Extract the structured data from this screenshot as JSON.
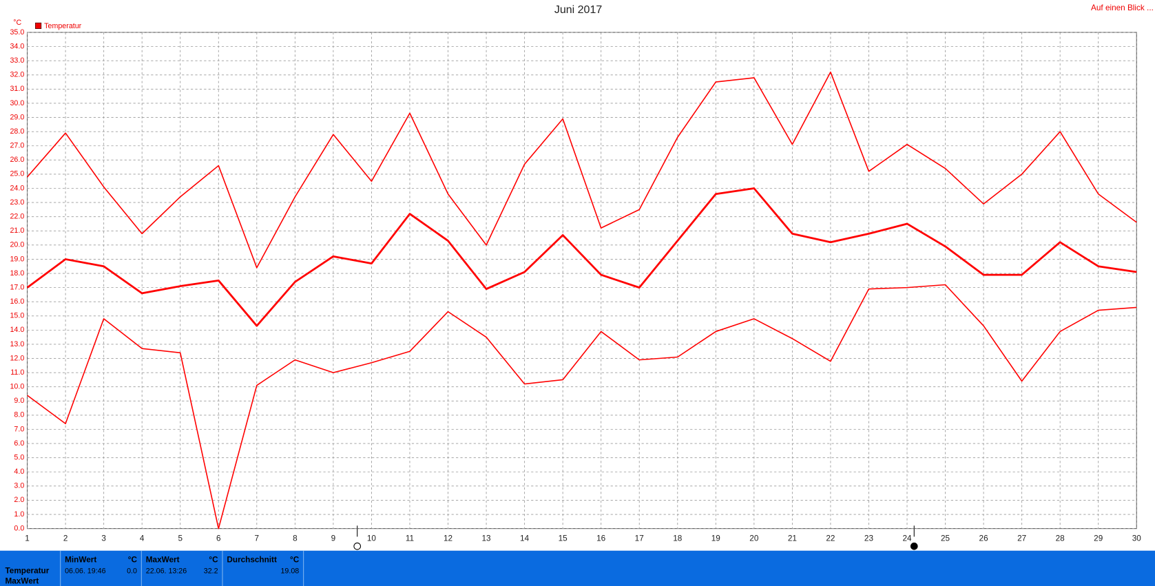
{
  "chart_data": {
    "type": "line",
    "title": "Juni 2017",
    "y_unit": "°C",
    "legend_label": "Temperatur",
    "x": [
      1,
      2,
      3,
      4,
      5,
      6,
      7,
      8,
      9,
      10,
      11,
      12,
      13,
      14,
      15,
      16,
      17,
      18,
      19,
      20,
      21,
      22,
      23,
      24,
      25,
      26,
      27,
      28,
      29,
      30
    ],
    "xticks": [
      1,
      2,
      3,
      4,
      5,
      6,
      7,
      8,
      9,
      10,
      11,
      12,
      13,
      14,
      15,
      16,
      17,
      18,
      19,
      20,
      21,
      22,
      23,
      24,
      25,
      26,
      27,
      28,
      29,
      30
    ],
    "xlim": [
      1,
      30
    ],
    "ylim": [
      0,
      35
    ],
    "grid": true,
    "yticks": [
      {
        "value": 0,
        "label": "0.0"
      },
      {
        "value": 1,
        "label": "1.0"
      },
      {
        "value": 2,
        "label": "2.0"
      },
      {
        "value": 3,
        "label": "3.0"
      },
      {
        "value": 4,
        "label": "4.0"
      },
      {
        "value": 5,
        "label": "5.0"
      },
      {
        "value": 6,
        "label": "6.0"
      },
      {
        "value": 7,
        "label": "7.0"
      },
      {
        "value": 8,
        "label": "8.0"
      },
      {
        "value": 9,
        "label": "9.0"
      },
      {
        "value": 10,
        "label": "10.0"
      },
      {
        "value": 11,
        "label": "11.0"
      },
      {
        "value": 12,
        "label": "12.0"
      },
      {
        "value": 13,
        "label": "13.0"
      },
      {
        "value": 14,
        "label": "14.0"
      },
      {
        "value": 15,
        "label": "15.0"
      },
      {
        "value": 16,
        "label": "16.0"
      },
      {
        "value": 17,
        "label": "17.0"
      },
      {
        "value": 18,
        "label": "18.0"
      },
      {
        "value": 19,
        "label": "19.0"
      },
      {
        "value": 20,
        "label": "20.0"
      },
      {
        "value": 21,
        "label": "21.0"
      },
      {
        "value": 22,
        "label": "22.0"
      },
      {
        "value": 23,
        "label": "23.0"
      },
      {
        "value": 24,
        "label": "24.0"
      },
      {
        "value": 25,
        "label": "25.0"
      },
      {
        "value": 26,
        "label": "26.0"
      },
      {
        "value": 27,
        "label": "27.0"
      },
      {
        "value": 28,
        "label": "28.0"
      },
      {
        "value": 29,
        "label": "29.0"
      },
      {
        "value": 30,
        "label": "30.0"
      },
      {
        "value": 31,
        "label": "31.0"
      },
      {
        "value": 32,
        "label": "32.0"
      },
      {
        "value": 33,
        "label": "33.0"
      },
      {
        "value": 34,
        "label": "34.0"
      },
      {
        "value": 35,
        "label": "35.0"
      }
    ],
    "series": [
      {
        "color": "#ff0000",
        "values": [
          24.8,
          27.9,
          24.1,
          20.8,
          23.4,
          25.6,
          18.4,
          23.4,
          27.8,
          24.5,
          29.3,
          23.6,
          20.0,
          25.7,
          28.9,
          21.2,
          22.5,
          27.6,
          31.5,
          31.8,
          27.1,
          32.2,
          25.2,
          27.1,
          25.4,
          22.9,
          25.0,
          28.0,
          23.6,
          21.6
        ]
      },
      {
        "color": "#ff0000",
        "values": [
          17.0,
          19.0,
          18.5,
          16.6,
          17.1,
          17.5,
          14.3,
          17.4,
          19.2,
          18.7,
          22.2,
          20.3,
          16.9,
          18.1,
          20.7,
          17.9,
          17.0,
          20.3,
          23.6,
          24.0,
          20.8,
          20.2,
          20.8,
          21.5,
          19.9,
          17.9,
          17.9,
          20.2,
          18.5,
          18.1
        ]
      },
      {
        "color": "#ff0000",
        "values": [
          9.4,
          7.4,
          14.8,
          12.7,
          12.4,
          0.0,
          10.1,
          11.9,
          11.0,
          11.7,
          12.5,
          15.3,
          13.5,
          10.2,
          10.5,
          13.9,
          11.9,
          12.1,
          13.9,
          14.8,
          13.4,
          11.8,
          16.9,
          17.0,
          17.2,
          14.3,
          10.4,
          13.9,
          15.4,
          15.6
        ]
      }
    ]
  },
  "header": {
    "link": "Auf einen Blick ..."
  },
  "footer": {
    "row_label": "Temperatur",
    "row_label_2": "MaxWert",
    "columns": [
      {
        "title": "MinWert",
        "unit": "°C",
        "time": "06.06.  19:46",
        "value": "0.0"
      },
      {
        "title": "MaxWert",
        "unit": "°C",
        "time": "22.06.  13:26",
        "value": "32.2"
      },
      {
        "title": "Durchschnitt",
        "unit": "°C",
        "time": "",
        "value": "19.08"
      }
    ]
  }
}
